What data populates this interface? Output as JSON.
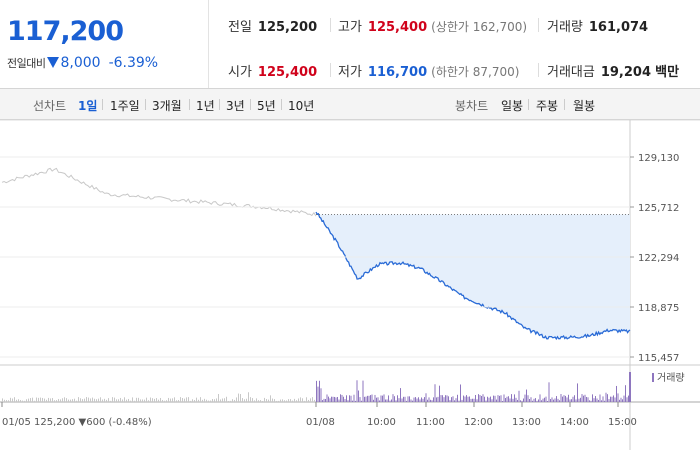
{
  "quote": {
    "price": "117,200",
    "change_label": "전일대비",
    "change_value": "8,000",
    "change_pct": "-6.39%",
    "prev_close_label": "전일",
    "prev_close": "125,200",
    "high_label": "고가",
    "high": "125,400",
    "upper_limit": "(상한가 162,700)",
    "volume_label": "거래량",
    "volume": "161,074",
    "open_label": "시가",
    "open": "125,400",
    "low_label": "저가",
    "low": "116,700",
    "lower_limit": "(하한가 87,700)",
    "amount_label": "거래대금",
    "amount": "19,204",
    "amount_unit": "백만"
  },
  "toolbar": {
    "line_label": "선차트",
    "periods": [
      "1일",
      "1주일",
      "3개월",
      "1년",
      "3년",
      "5년",
      "10년"
    ],
    "active_period": "1일",
    "candle_label": "봉차트",
    "candles": [
      "일봉",
      "주봉",
      "월봉"
    ]
  },
  "chart_data": {
    "type": "line",
    "y_ticks": [
      "129,130",
      "125,712",
      "122,294",
      "118,875",
      "115,457"
    ],
    "ylim": [
      115457,
      129130
    ],
    "x_ticks": [
      "01/05",
      "01/08",
      "10:00",
      "11:00",
      "12:00",
      "13:00",
      "14:00",
      "15:00"
    ],
    "prev_day_summary": "01/05  125,200 ▼600 (-0.48%)",
    "reference_price": 125200,
    "volume_label": "거래량",
    "series": [
      {
        "x": [
          "01/05 09:00",
          "01/05 10:00",
          "01/05 11:00",
          "01/05 12:00",
          "01/05 13:00",
          "01/05 14:00",
          "01/05 15:00"
        ],
        "values": [
          127400,
          128300,
          126600,
          126300,
          126000,
          125700,
          125200
        ]
      },
      {
        "x": [
          "09:00",
          "09:15",
          "09:30",
          "09:45",
          "10:00",
          "10:30",
          "11:00",
          "11:30",
          "12:00",
          "12:30",
          "13:00",
          "13:30",
          "14:00",
          "14:30",
          "15:00",
          "15:30"
        ],
        "values": [
          125400,
          123300,
          120800,
          121800,
          121900,
          121500,
          120600,
          119600,
          119000,
          118500,
          117400,
          116800,
          116800,
          116900,
          117300,
          117200
        ]
      }
    ],
    "colors": {
      "prev": "#c8c8c8",
      "today": "#2a6bd6",
      "fill": "#e5effb",
      "volume": "#8e76bf",
      "prev_volume": "#c8c8c8"
    }
  }
}
